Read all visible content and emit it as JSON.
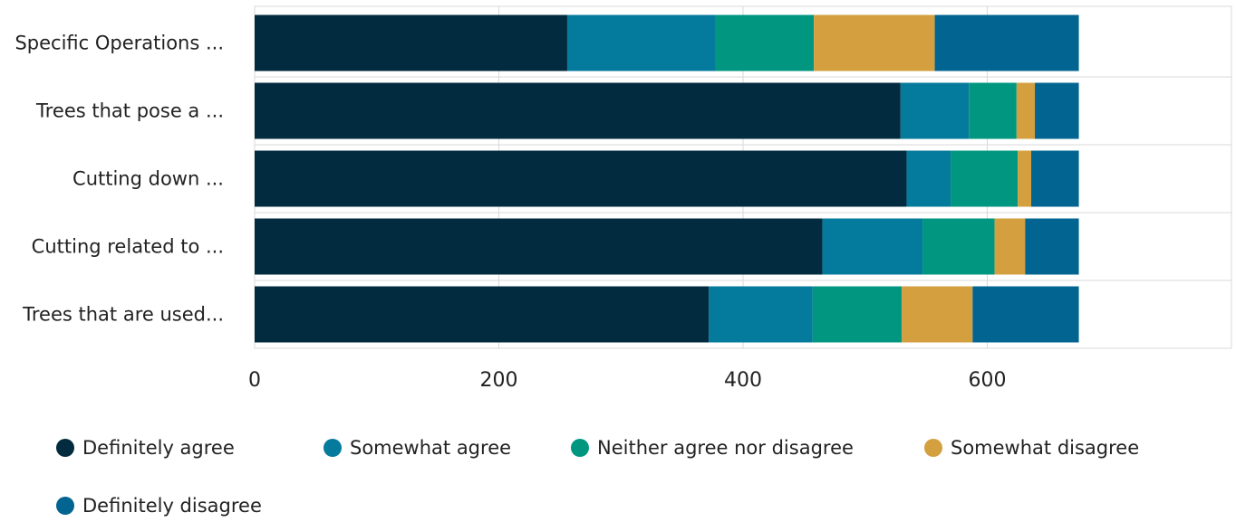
{
  "chart_data": {
    "type": "bar",
    "orientation": "horizontal",
    "stacked": true,
    "categories": [
      "Specific Operations ...",
      "Trees that pose a ...",
      "Cutting down ...",
      "Cutting related to ...",
      "Trees that are used..."
    ],
    "series": [
      {
        "name": "Definitely agree",
        "color": "#022b3f",
        "values": [
          256,
          529,
          534,
          465,
          372
        ]
      },
      {
        "name": "Somewhat agree",
        "color": "#047a9c",
        "values": [
          121,
          56,
          36,
          82,
          85
        ]
      },
      {
        "name": "Neither agree nor disagree",
        "color": "#009680",
        "values": [
          81,
          39,
          55,
          59,
          73
        ]
      },
      {
        "name": "Somewhat disagree",
        "color": "#d39f3f",
        "values": [
          99,
          15,
          11,
          25,
          58
        ]
      },
      {
        "name": "Definitely disagree",
        "color": "#026591",
        "values": [
          118,
          36,
          39,
          44,
          87
        ]
      }
    ],
    "xlim": [
      0,
      800
    ],
    "xticks": [
      0,
      200,
      400,
      600
    ],
    "grid": true,
    "legend": "bottom",
    "title": "",
    "xlabel": "",
    "ylabel": ""
  }
}
